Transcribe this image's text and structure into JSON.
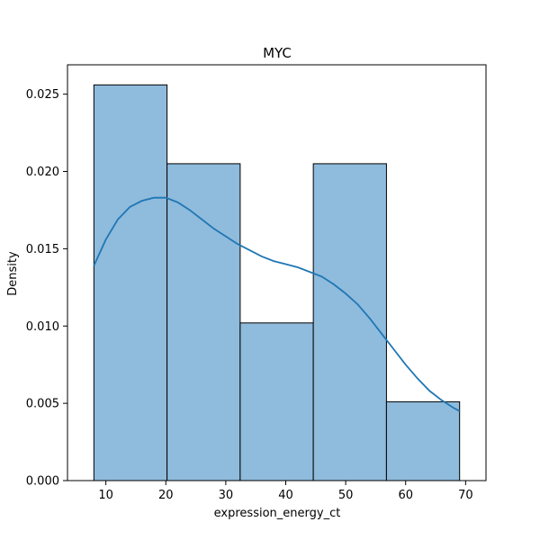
{
  "chart_data": {
    "type": "histogram",
    "title": "MYC",
    "xlabel": "expression_energy_ct",
    "ylabel": "Density",
    "xlim": [
      3.6,
      73.4
    ],
    "ylim": [
      0,
      0.0269
    ],
    "xticks": [
      10,
      20,
      30,
      40,
      50,
      60,
      70
    ],
    "yticks": [
      0.0,
      0.005,
      0.01,
      0.015,
      0.02,
      0.025
    ],
    "ytick_labels": [
      "0.000",
      "0.005",
      "0.010",
      "0.015",
      "0.020",
      "0.025"
    ],
    "bins": [
      {
        "x0": 8.0,
        "x1": 20.2,
        "density": 0.0256
      },
      {
        "x0": 20.2,
        "x1": 32.4,
        "density": 0.0205
      },
      {
        "x0": 32.4,
        "x1": 44.6,
        "density": 0.0102
      },
      {
        "x0": 44.6,
        "x1": 56.8,
        "density": 0.0205
      },
      {
        "x0": 56.8,
        "x1": 69.0,
        "density": 0.0051
      }
    ],
    "kde": {
      "x": [
        8,
        10,
        12,
        14,
        16,
        18,
        20,
        22,
        24,
        26,
        28,
        30,
        32,
        34,
        36,
        38,
        40,
        42,
        44,
        46,
        48,
        50,
        52,
        54,
        56,
        58,
        60,
        62,
        64,
        66,
        68,
        69
      ],
      "y": [
        0.0139,
        0.0156,
        0.0169,
        0.0177,
        0.0181,
        0.0183,
        0.0183,
        0.018,
        0.0175,
        0.0169,
        0.0163,
        0.0158,
        0.0153,
        0.0149,
        0.0145,
        0.0142,
        0.014,
        0.0138,
        0.0135,
        0.0132,
        0.0127,
        0.0121,
        0.0114,
        0.0105,
        0.0095,
        0.0085,
        0.0075,
        0.0066,
        0.0058,
        0.0052,
        0.0047,
        0.0045
      ]
    },
    "grid": false,
    "colors": {
      "bar_fill": "#8fbbdc",
      "bar_edge": "#000000",
      "kde_line": "#1f77b4"
    }
  }
}
